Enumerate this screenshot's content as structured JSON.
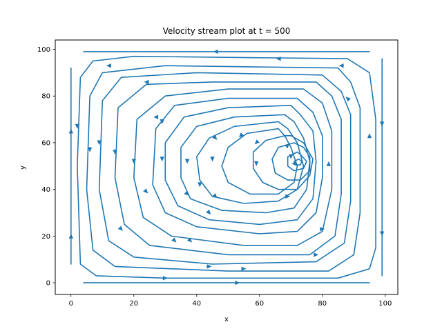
{
  "chart_data": {
    "type": "streamplot",
    "title": "Velocity stream plot at t = 500",
    "xlabel": "x",
    "ylabel": "y",
    "xlim": [
      -5,
      104
    ],
    "ylim": [
      -5,
      104
    ],
    "xticks": [
      0,
      20,
      40,
      60,
      80,
      100
    ],
    "yticks": [
      0,
      20,
      40,
      60,
      80,
      100
    ],
    "xtick_labels": [
      "0",
      "20",
      "40",
      "60",
      "80",
      "100"
    ],
    "ytick_labels": [
      "0",
      "20",
      "40",
      "60",
      "80",
      "100"
    ],
    "grid": false,
    "color": "#1f77b4",
    "vortex_center": [
      72,
      51
    ],
    "flow_direction": "counterclockwise",
    "streamlines": [
      {
        "points": [
          [
            95,
            99
          ],
          [
            4,
            99
          ]
        ],
        "arrows": [
          [
            46,
            99,
            -1,
            0
          ]
        ]
      },
      {
        "points": [
          [
            0,
            92
          ],
          [
            0,
            8
          ]
        ],
        "arrows": [
          [
            0,
            65,
            0,
            1
          ],
          [
            0,
            20,
            0,
            1
          ]
        ]
      },
      {
        "points": [
          [
            4,
            0
          ],
          [
            95,
            0
          ]
        ],
        "arrows": [
          [
            53,
            0,
            1,
            0
          ]
        ]
      },
      {
        "points": [
          [
            99,
            96
          ],
          [
            99,
            3
          ]
        ],
        "arrows": [
          [
            99,
            68,
            0,
            -1
          ],
          [
            99,
            21,
            0,
            -1
          ]
        ]
      },
      {
        "points": [
          [
            88,
            96
          ],
          [
            20,
            97
          ],
          [
            7,
            95
          ],
          [
            3,
            88
          ],
          [
            2,
            50
          ],
          [
            3,
            8
          ],
          [
            8,
            3
          ],
          [
            30,
            2
          ],
          [
            85,
            2
          ],
          [
            95,
            6
          ],
          [
            97,
            15
          ],
          [
            97,
            70
          ],
          [
            95,
            90
          ],
          [
            88,
            96
          ]
        ],
        "arrows": [
          [
            66,
            96,
            -1,
            0
          ],
          [
            2,
            67,
            0,
            -1
          ],
          [
            30,
            2,
            1,
            0
          ],
          [
            95,
            63,
            0,
            1
          ]
        ]
      },
      {
        "points": [
          [
            85,
            92
          ],
          [
            30,
            93
          ],
          [
            10,
            90
          ],
          [
            6,
            80
          ],
          [
            5,
            40
          ],
          [
            7,
            14
          ],
          [
            14,
            7
          ],
          [
            50,
            5
          ],
          [
            82,
            5
          ],
          [
            90,
            12
          ],
          [
            92,
            30
          ],
          [
            92,
            75
          ],
          [
            89,
            86
          ],
          [
            85,
            92
          ]
        ],
        "arrows": [
          [
            12,
            93,
            -1,
            0
          ],
          [
            6,
            57,
            0,
            -1
          ],
          [
            55,
            6,
            1,
            0
          ],
          [
            86,
            93,
            -1,
            0
          ]
        ]
      },
      {
        "points": [
          [
            80,
            89
          ],
          [
            40,
            90
          ],
          [
            16,
            88
          ],
          [
            10,
            78
          ],
          [
            9,
            40
          ],
          [
            12,
            18
          ],
          [
            20,
            11
          ],
          [
            45,
            8
          ],
          [
            78,
            9
          ],
          [
            87,
            17
          ],
          [
            89,
            35
          ],
          [
            89,
            72
          ],
          [
            86,
            82
          ],
          [
            80,
            89
          ]
        ],
        "arrows": [
          [
            9,
            60,
            0,
            -1
          ],
          [
            44,
            7,
            1,
            0
          ],
          [
            88,
            79,
            -1,
            1
          ]
        ]
      },
      {
        "points": [
          [
            78,
            86
          ],
          [
            45,
            86
          ],
          [
            24,
            85
          ],
          [
            15,
            75
          ],
          [
            14,
            45
          ],
          [
            17,
            25
          ],
          [
            25,
            16
          ],
          [
            50,
            12
          ],
          [
            76,
            12
          ],
          [
            84,
            20
          ],
          [
            86,
            38
          ],
          [
            86,
            70
          ],
          [
            83,
            80
          ],
          [
            78,
            86
          ]
        ],
        "arrows": [
          [
            24,
            86,
            -1,
            0
          ],
          [
            14,
            56,
            0,
            -1
          ],
          [
            16,
            23,
            1,
            -1
          ],
          [
            78,
            12,
            1,
            0
          ]
        ]
      },
      {
        "points": [
          [
            74,
            83
          ],
          [
            50,
            83
          ],
          [
            30,
            80
          ],
          [
            21,
            70
          ],
          [
            20,
            45
          ],
          [
            23,
            28
          ],
          [
            32,
            20
          ],
          [
            55,
            16
          ],
          [
            72,
            16
          ],
          [
            80,
            22
          ],
          [
            83,
            40
          ],
          [
            83,
            65
          ],
          [
            80,
            77
          ],
          [
            74,
            83
          ]
        ],
        "arrows": [
          [
            20,
            52,
            0,
            -1
          ],
          [
            33,
            18,
            1,
            -1
          ],
          [
            82,
            51,
            0,
            1
          ]
        ]
      },
      {
        "points": [
          [
            72,
            79
          ],
          [
            50,
            79
          ],
          [
            33,
            76
          ],
          [
            27,
            66
          ],
          [
            26,
            42
          ],
          [
            30,
            30
          ],
          [
            40,
            24
          ],
          [
            60,
            21
          ],
          [
            72,
            22
          ],
          [
            78,
            30
          ],
          [
            80,
            45
          ],
          [
            80,
            63
          ],
          [
            77,
            73
          ],
          [
            72,
            79
          ]
        ],
        "arrows": [
          [
            27,
            71,
            -1,
            0
          ],
          [
            38,
            18,
            1,
            -1
          ],
          [
            80,
            23,
            1,
            0
          ]
        ]
      },
      {
        "points": [
          [
            70,
            76
          ],
          [
            50,
            75
          ],
          [
            36,
            71
          ],
          [
            30,
            60
          ],
          [
            30,
            44
          ],
          [
            34,
            33
          ],
          [
            44,
            27
          ],
          [
            60,
            25
          ],
          [
            72,
            27
          ],
          [
            77,
            36
          ],
          [
            78,
            52
          ],
          [
            77,
            65
          ],
          [
            73,
            72
          ],
          [
            70,
            76
          ]
        ],
        "arrows": [
          [
            29,
            69,
            0,
            -1
          ],
          [
            29,
            53,
            0,
            -1
          ],
          [
            24,
            39,
            1,
            -1
          ]
        ]
      },
      {
        "points": [
          [
            68,
            72
          ],
          [
            52,
            71
          ],
          [
            40,
            67
          ],
          [
            35,
            58
          ],
          [
            35,
            45
          ],
          [
            38,
            36
          ],
          [
            48,
            31
          ],
          [
            62,
            30
          ],
          [
            71,
            32
          ],
          [
            75,
            40
          ],
          [
            76,
            52
          ],
          [
            74,
            62
          ],
          [
            71,
            69
          ],
          [
            68,
            72
          ]
        ],
        "arrows": [
          [
            37,
            52,
            0,
            -1
          ],
          [
            37,
            38,
            1,
            -1
          ],
          [
            44,
            30,
            1,
            -1
          ]
        ]
      },
      {
        "points": [
          [
            66,
            69
          ],
          [
            52,
            67
          ],
          [
            44,
            62
          ],
          [
            40,
            54
          ],
          [
            41,
            44
          ],
          [
            45,
            37
          ],
          [
            55,
            34
          ],
          [
            66,
            35
          ],
          [
            72,
            40
          ],
          [
            74,
            50
          ],
          [
            72,
            60
          ],
          [
            69,
            66
          ],
          [
            66,
            69
          ]
        ],
        "arrows": [
          [
            46,
            62,
            1,
            -1
          ],
          [
            45,
            53,
            0,
            -1
          ],
          [
            46,
            37,
            1,
            -1
          ]
        ]
      },
      {
        "points": [
          [
            66,
            66
          ],
          [
            56,
            64
          ],
          [
            50,
            58
          ],
          [
            48,
            50
          ],
          [
            50,
            43
          ],
          [
            57,
            38
          ],
          [
            66,
            38
          ],
          [
            71,
            43
          ],
          [
            72,
            50
          ],
          [
            70,
            58
          ],
          [
            68,
            63
          ],
          [
            66,
            66
          ]
        ],
        "arrows": [
          [
            54,
            63,
            -1,
            -1
          ],
          [
            41,
            42,
            0,
            -1
          ]
        ]
      },
      {
        "points": [
          [
            68,
            63
          ],
          [
            62,
            61
          ],
          [
            58,
            56
          ],
          [
            58,
            49
          ],
          [
            61,
            43
          ],
          [
            66,
            40
          ],
          [
            72,
            40
          ],
          [
            76,
            46
          ],
          [
            77,
            53
          ],
          [
            74,
            60
          ],
          [
            70,
            63
          ],
          [
            68,
            63
          ]
        ],
        "arrows": [
          [
            59,
            60,
            -1,
            -1
          ],
          [
            59,
            51,
            0,
            -1
          ],
          [
            69,
            37,
            1,
            0
          ]
        ]
      },
      {
        "points": [
          [
            71,
            60
          ],
          [
            66,
            58
          ],
          [
            64,
            53
          ],
          [
            65,
            47
          ],
          [
            69,
            44
          ],
          [
            73,
            44
          ],
          [
            76,
            48
          ],
          [
            76,
            54
          ],
          [
            74,
            58
          ],
          [
            71,
            60
          ]
        ],
        "arrows": [
          [
            69,
            59,
            1,
            1
          ],
          [
            70,
            54,
            0,
            -1
          ]
        ]
      },
      {
        "points": [
          [
            72,
            56
          ],
          [
            69,
            54
          ],
          [
            69,
            50
          ],
          [
            71,
            48
          ],
          [
            74,
            49
          ],
          [
            75,
            52
          ],
          [
            73,
            55
          ],
          [
            72,
            56
          ]
        ],
        "arrows": [
          [
            71,
            51,
            -1,
            0
          ]
        ]
      },
      {
        "points": [
          [
            72.5,
            53
          ],
          [
            71,
            52
          ],
          [
            71.5,
            50.5
          ],
          [
            73,
            50.5
          ],
          [
            73.5,
            52
          ],
          [
            72.5,
            53
          ]
        ],
        "arrows": []
      }
    ]
  }
}
